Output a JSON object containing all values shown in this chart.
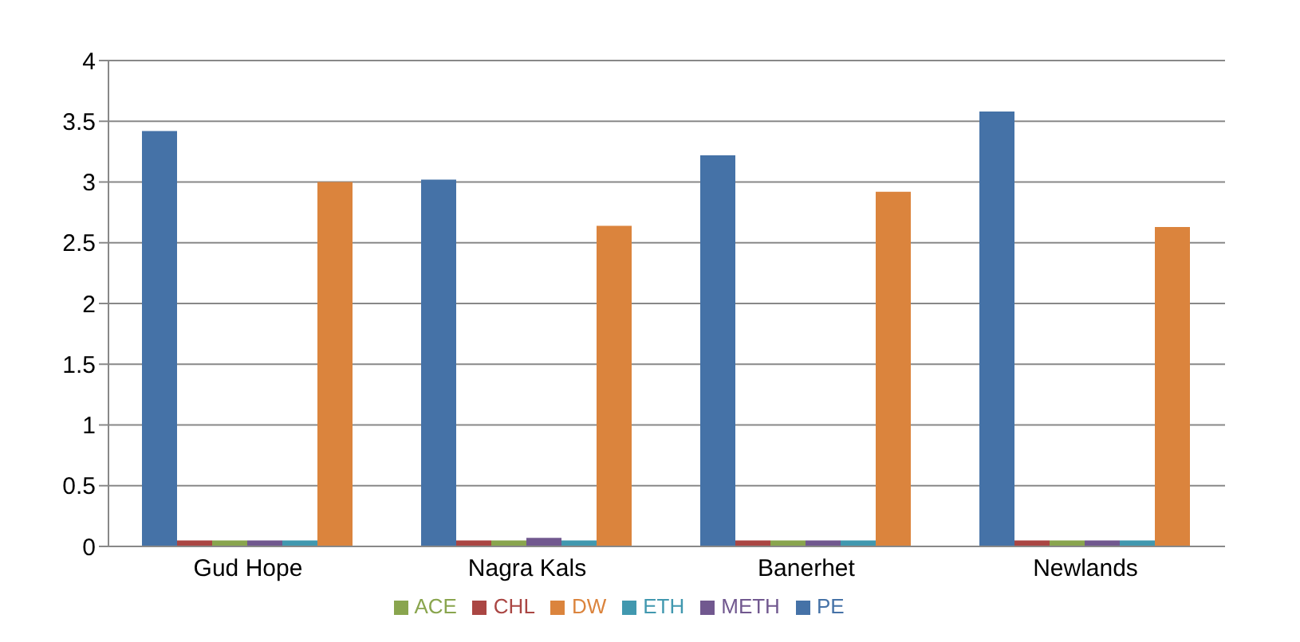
{
  "chart_data": {
    "type": "bar",
    "categories": [
      "Gud Hope",
      "Nagra Kals",
      "Banerhet",
      "Newlands"
    ],
    "series": [
      {
        "name": "PE",
        "color": "#4572a7",
        "values": [
          3.42,
          3.02,
          3.22,
          3.58
        ]
      },
      {
        "name": "CHL",
        "color": "#aa4643",
        "values": [
          0.05,
          0.05,
          0.05,
          0.05
        ]
      },
      {
        "name": "ACE",
        "color": "#89a54e",
        "values": [
          0.05,
          0.05,
          0.05,
          0.05
        ]
      },
      {
        "name": "METH",
        "color": "#71588f",
        "values": [
          0.05,
          0.07,
          0.05,
          0.05
        ]
      },
      {
        "name": "ETH",
        "color": "#4198af",
        "values": [
          0.05,
          0.05,
          0.05,
          0.05
        ]
      },
      {
        "name": "DW",
        "color": "#db843d",
        "values": [
          3.0,
          2.64,
          2.92,
          2.63
        ]
      }
    ],
    "ylim": [
      0,
      4
    ],
    "yticks": [
      0,
      0.5,
      1,
      1.5,
      2,
      2.5,
      3,
      3.5,
      4
    ],
    "grid": "y",
    "legend": "bottom"
  }
}
